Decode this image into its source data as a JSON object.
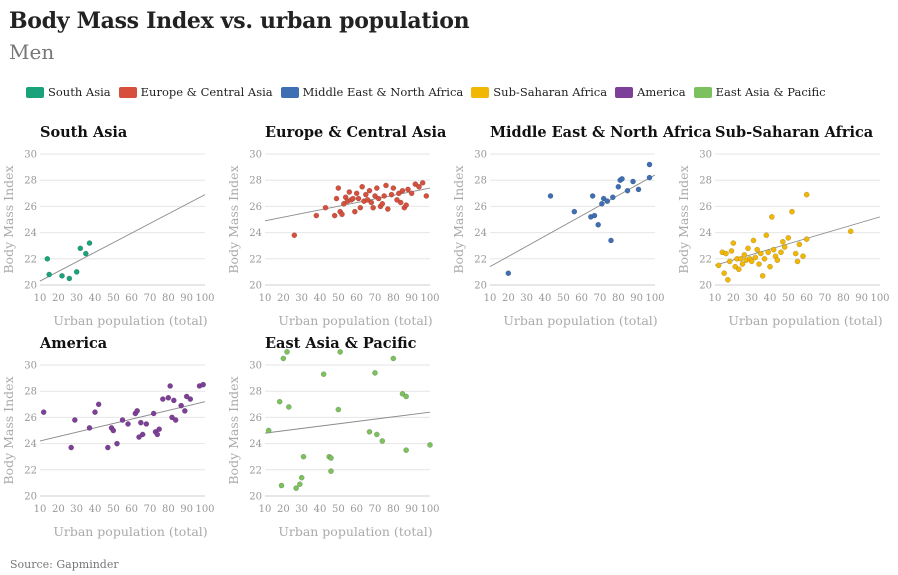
{
  "title": "Body Mass Index vs. urban population",
  "subtitle": "Men",
  "source": "Source: Gapminder",
  "legend": [
    {
      "label": "South Asia",
      "color": "#1aa37a"
    },
    {
      "label": "Europe & Central Asia",
      "color": "#d6513d"
    },
    {
      "label": "Middle East & North Africa",
      "color": "#3f6fb3"
    },
    {
      "label": "Sub-Saharan Africa",
      "color": "#f2b705"
    },
    {
      "label": "America",
      "color": "#7e3f98"
    },
    {
      "label": "East Asia & Pacific",
      "color": "#7dc15e"
    }
  ],
  "chart_data": [
    {
      "type": "scatter",
      "title": "South Asia",
      "color": "#1aa37a",
      "xlabel": "Urban population (total)",
      "ylabel": "Body Mass Index",
      "xlim": [
        10,
        100
      ],
      "ylim": [
        20,
        30
      ],
      "xticks": [
        10,
        20,
        30,
        40,
        50,
        60,
        70,
        80,
        90,
        100
      ],
      "yticks": [
        20,
        22,
        24,
        26,
        28,
        30
      ],
      "grid": "horizontal",
      "trendline": [
        [
          10,
          20.3
        ],
        [
          100,
          26.9
        ]
      ],
      "points": [
        [
          14,
          22.0
        ],
        [
          15,
          20.8
        ],
        [
          22,
          20.7
        ],
        [
          26,
          20.5
        ],
        [
          30,
          21.0
        ],
        [
          32,
          22.8
        ],
        [
          35,
          22.4
        ],
        [
          37,
          23.2
        ]
      ]
    },
    {
      "type": "scatter",
      "title": "Europe & Central Asia",
      "color": "#d6513d",
      "xlabel": "Urban population (total)",
      "ylabel": "Body Mass Index",
      "xlim": [
        10,
        100
      ],
      "ylim": [
        20,
        30
      ],
      "xticks": [
        10,
        20,
        30,
        40,
        50,
        60,
        70,
        80,
        90,
        100
      ],
      "yticks": [
        20,
        22,
        24,
        26,
        28,
        30
      ],
      "grid": "horizontal",
      "trendline": [
        [
          10,
          24.9
        ],
        [
          100,
          27.4
        ]
      ],
      "points": [
        [
          26,
          23.8
        ],
        [
          38,
          25.3
        ],
        [
          43,
          25.9
        ],
        [
          48,
          25.3
        ],
        [
          49,
          26.6
        ],
        [
          50,
          27.4
        ],
        [
          51,
          25.6
        ],
        [
          52,
          25.4
        ],
        [
          53,
          26.2
        ],
        [
          54,
          26.7
        ],
        [
          55,
          26.4
        ],
        [
          56,
          27.1
        ],
        [
          57,
          26.5
        ],
        [
          58,
          26.6
        ],
        [
          59,
          25.6
        ],
        [
          60,
          27.0
        ],
        [
          61,
          26.6
        ],
        [
          62,
          25.9
        ],
        [
          63,
          27.5
        ],
        [
          64,
          26.4
        ],
        [
          65,
          26.9
        ],
        [
          66,
          26.5
        ],
        [
          67,
          27.2
        ],
        [
          68,
          26.3
        ],
        [
          69,
          25.9
        ],
        [
          70,
          26.8
        ],
        [
          71,
          27.4
        ],
        [
          72,
          26.6
        ],
        [
          73,
          26.0
        ],
        [
          74,
          26.2
        ],
        [
          75,
          26.8
        ],
        [
          76,
          27.6
        ],
        [
          77,
          25.8
        ],
        [
          79,
          26.9
        ],
        [
          80,
          27.4
        ],
        [
          82,
          26.5
        ],
        [
          83,
          27.0
        ],
        [
          84,
          26.3
        ],
        [
          85,
          27.2
        ],
        [
          86,
          25.9
        ],
        [
          87,
          26.1
        ],
        [
          88,
          27.3
        ],
        [
          90,
          27.0
        ],
        [
          92,
          27.7
        ],
        [
          94,
          27.5
        ],
        [
          96,
          27.8
        ],
        [
          98,
          26.8
        ]
      ]
    },
    {
      "type": "scatter",
      "title": "Middle East & North Africa",
      "color": "#3f6fb3",
      "xlabel": "Urban population (total)",
      "ylabel": "Body Mass Index",
      "xlim": [
        10,
        100
      ],
      "ylim": [
        20,
        30
      ],
      "xticks": [
        10,
        20,
        30,
        40,
        50,
        60,
        70,
        80,
        90,
        100
      ],
      "yticks": [
        20,
        22,
        24,
        26,
        28,
        30
      ],
      "grid": "horizontal",
      "trendline": [
        [
          10,
          21.4
        ],
        [
          100,
          28.4
        ]
      ],
      "points": [
        [
          20,
          20.9
        ],
        [
          43,
          26.8
        ],
        [
          56,
          25.6
        ],
        [
          65,
          25.2
        ],
        [
          66,
          26.8
        ],
        [
          67,
          25.3
        ],
        [
          69,
          24.6
        ],
        [
          71,
          26.2
        ],
        [
          72,
          26.6
        ],
        [
          74,
          26.4
        ],
        [
          76,
          23.4
        ],
        [
          77,
          26.7
        ],
        [
          80,
          27.5
        ],
        [
          81,
          28.0
        ],
        [
          82,
          28.1
        ],
        [
          85,
          27.2
        ],
        [
          88,
          27.9
        ],
        [
          91,
          27.3
        ],
        [
          97,
          28.2
        ],
        [
          97,
          29.2
        ]
      ]
    },
    {
      "type": "scatter",
      "title": "Sub-Saharan Africa",
      "color": "#f2b705",
      "xlabel": "Urban population (total)",
      "ylabel": "Body Mass Index",
      "xlim": [
        10,
        100
      ],
      "ylim": [
        20,
        30
      ],
      "xticks": [
        10,
        20,
        30,
        40,
        50,
        60,
        70,
        80,
        90,
        100
      ],
      "yticks": [
        20,
        22,
        24,
        26,
        28,
        30
      ],
      "grid": "horizontal",
      "trendline": [
        [
          10,
          21.5
        ],
        [
          100,
          25.2
        ]
      ],
      "points": [
        [
          12,
          21.5
        ],
        [
          14,
          22.5
        ],
        [
          15,
          20.9
        ],
        [
          16,
          22.4
        ],
        [
          17,
          20.4
        ],
        [
          18,
          21.8
        ],
        [
          19,
          22.6
        ],
        [
          20,
          23.2
        ],
        [
          21,
          21.4
        ],
        [
          22,
          22.0
        ],
        [
          23,
          21.2
        ],
        [
          24,
          22.0
        ],
        [
          25,
          21.6
        ],
        [
          26,
          22.3
        ],
        [
          27,
          21.9
        ],
        [
          28,
          22.8
        ],
        [
          29,
          22.0
        ],
        [
          30,
          21.8
        ],
        [
          31,
          23.4
        ],
        [
          32,
          22.1
        ],
        [
          33,
          22.7
        ],
        [
          34,
          21.6
        ],
        [
          35,
          22.4
        ],
        [
          36,
          20.7
        ],
        [
          37,
          22.0
        ],
        [
          38,
          23.8
        ],
        [
          39,
          22.5
        ],
        [
          40,
          21.4
        ],
        [
          41,
          25.2
        ],
        [
          42,
          22.7
        ],
        [
          43,
          22.2
        ],
        [
          44,
          21.9
        ],
        [
          46,
          22.5
        ],
        [
          47,
          23.3
        ],
        [
          48,
          22.9
        ],
        [
          50,
          23.6
        ],
        [
          52,
          25.6
        ],
        [
          54,
          22.4
        ],
        [
          55,
          21.8
        ],
        [
          56,
          23.1
        ],
        [
          58,
          22.2
        ],
        [
          60,
          26.9
        ],
        [
          60,
          23.5
        ],
        [
          84,
          24.1
        ]
      ]
    },
    {
      "type": "scatter",
      "title": "America",
      "color": "#7e3f98",
      "xlabel": "Urban population (total)",
      "ylabel": "Body Mass Index",
      "xlim": [
        10,
        100
      ],
      "ylim": [
        20,
        30
      ],
      "xticks": [
        10,
        20,
        30,
        40,
        50,
        60,
        70,
        80,
        90,
        100
      ],
      "yticks": [
        20,
        22,
        24,
        26,
        28,
        30
      ],
      "grid": "horizontal",
      "trendline": [
        [
          10,
          24.2
        ],
        [
          100,
          27.2
        ]
      ],
      "points": [
        [
          12,
          26.4
        ],
        [
          27,
          23.7
        ],
        [
          29,
          25.8
        ],
        [
          37,
          25.2
        ],
        [
          40,
          26.4
        ],
        [
          42,
          27.0
        ],
        [
          47,
          23.7
        ],
        [
          49,
          25.2
        ],
        [
          50,
          25.0
        ],
        [
          52,
          24.0
        ],
        [
          55,
          25.8
        ],
        [
          58,
          25.5
        ],
        [
          62,
          26.3
        ],
        [
          63,
          26.5
        ],
        [
          64,
          24.5
        ],
        [
          65,
          25.6
        ],
        [
          66,
          24.7
        ],
        [
          68,
          25.5
        ],
        [
          72,
          26.3
        ],
        [
          73,
          24.9
        ],
        [
          74,
          24.7
        ],
        [
          75,
          25.1
        ],
        [
          77,
          27.4
        ],
        [
          80,
          27.5
        ],
        [
          81,
          28.4
        ],
        [
          82,
          26.0
        ],
        [
          83,
          27.3
        ],
        [
          84,
          25.8
        ],
        [
          87,
          26.9
        ],
        [
          89,
          26.5
        ],
        [
          90,
          27.6
        ],
        [
          92,
          27.4
        ],
        [
          97,
          28.4
        ],
        [
          99,
          28.5
        ]
      ]
    },
    {
      "type": "scatter",
      "title": "East Asia & Pacific",
      "color": "#7dc15e",
      "xlabel": "Urban population (total)",
      "ylabel": "Body Mass Index",
      "xlim": [
        10,
        100
      ],
      "ylim": [
        20,
        30
      ],
      "xticks": [
        10,
        20,
        30,
        40,
        50,
        60,
        70,
        80,
        90,
        100
      ],
      "yticks": [
        20,
        22,
        24,
        26,
        28,
        30
      ],
      "grid": "horizontal",
      "trendline": [
        [
          10,
          24.8
        ],
        [
          100,
          26.4
        ]
      ],
      "points": [
        [
          12,
          25.0
        ],
        [
          18,
          27.2
        ],
        [
          19,
          20.8
        ],
        [
          20,
          30.5
        ],
        [
          22,
          31.0
        ],
        [
          23,
          26.8
        ],
        [
          27,
          20.6
        ],
        [
          29,
          20.9
        ],
        [
          30,
          21.4
        ],
        [
          31,
          23.0
        ],
        [
          42,
          29.3
        ],
        [
          45,
          23.0
        ],
        [
          46,
          21.9
        ],
        [
          46,
          22.9
        ],
        [
          50,
          26.6
        ],
        [
          51,
          31.0
        ],
        [
          67,
          24.9
        ],
        [
          70,
          29.4
        ],
        [
          71,
          24.7
        ],
        [
          74,
          24.2
        ],
        [
          80,
          30.5
        ],
        [
          85,
          27.8
        ],
        [
          87,
          27.6
        ],
        [
          87,
          23.5
        ],
        [
          100,
          23.9
        ]
      ]
    }
  ]
}
